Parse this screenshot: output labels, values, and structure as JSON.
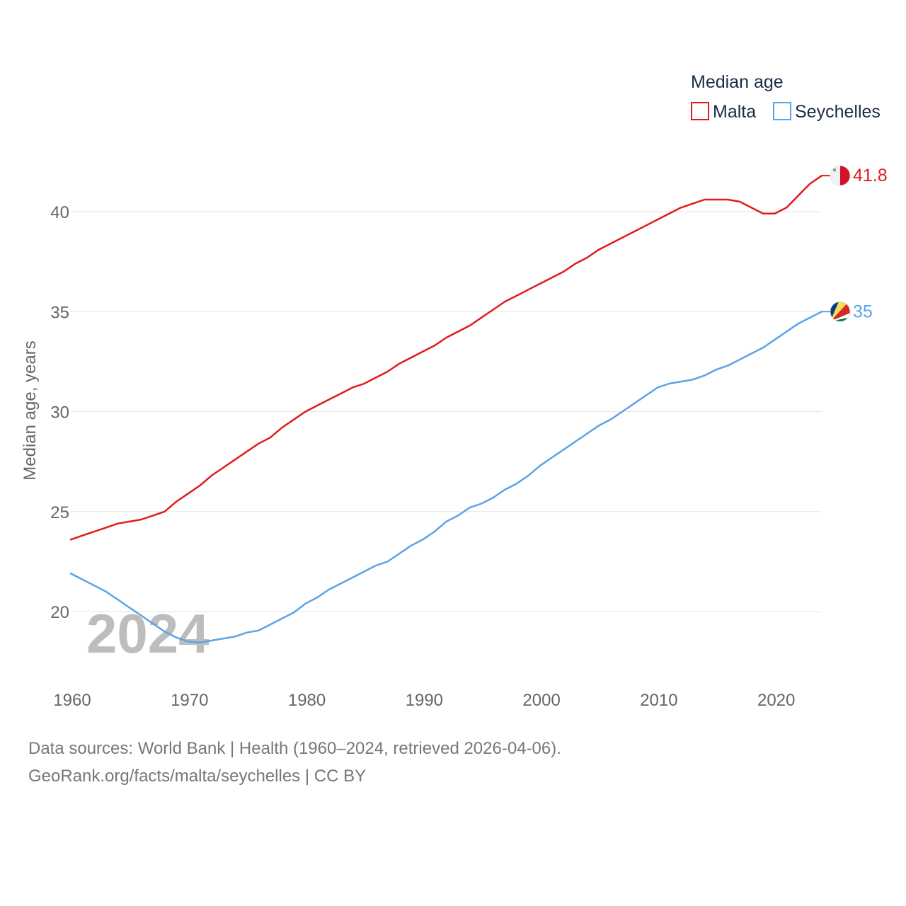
{
  "chart_data": {
    "type": "line",
    "legend_title": "Median age",
    "ylabel": "Median age, years",
    "xlabel": "",
    "ylim": [
      16.5,
      43.5
    ],
    "xlim": [
      1960,
      2024
    ],
    "y_ticks": [
      20,
      25,
      30,
      35,
      40
    ],
    "x_ticks": [
      1960,
      1970,
      1980,
      1990,
      2000,
      2010,
      2020
    ],
    "grid": true,
    "legend_position": "top-right",
    "current_year": "2024",
    "series": [
      {
        "name": "Malta",
        "color": "#e31a1c",
        "end_label": "41.8",
        "flag_icon": "malta-flag-icon",
        "x": [
          1960,
          1961,
          1962,
          1963,
          1964,
          1965,
          1966,
          1967,
          1968,
          1969,
          1970,
          1971,
          1972,
          1973,
          1974,
          1975,
          1976,
          1977,
          1978,
          1979,
          1980,
          1981,
          1982,
          1983,
          1984,
          1985,
          1986,
          1987,
          1988,
          1989,
          1990,
          1991,
          1992,
          1993,
          1994,
          1995,
          1996,
          1997,
          1998,
          1999,
          2000,
          2001,
          2002,
          2003,
          2004,
          2005,
          2006,
          2007,
          2008,
          2009,
          2010,
          2011,
          2012,
          2013,
          2014,
          2015,
          2016,
          2017,
          2018,
          2019,
          2020,
          2021,
          2022,
          2023,
          2024
        ],
        "values": [
          23.6,
          23.8,
          24.0,
          24.2,
          24.4,
          24.5,
          24.6,
          24.8,
          25.0,
          25.5,
          25.9,
          26.3,
          26.8,
          27.2,
          27.6,
          28.0,
          28.4,
          28.7,
          29.2,
          29.6,
          30.0,
          30.3,
          30.6,
          30.9,
          31.2,
          31.4,
          31.7,
          32.0,
          32.4,
          32.7,
          33.0,
          33.3,
          33.7,
          34.0,
          34.3,
          34.7,
          35.1,
          35.5,
          35.8,
          36.1,
          36.4,
          36.7,
          37.0,
          37.4,
          37.7,
          38.1,
          38.4,
          38.7,
          39.0,
          39.3,
          39.6,
          39.9,
          40.2,
          40.4,
          40.6,
          40.6,
          40.6,
          40.5,
          40.2,
          39.9,
          39.9,
          40.2,
          40.8,
          41.4,
          41.8
        ]
      },
      {
        "name": "Seychelles",
        "color": "#5ba3e6",
        "end_label": "35",
        "flag_icon": "seychelles-flag-icon",
        "x": [
          1960,
          1961,
          1962,
          1963,
          1964,
          1965,
          1966,
          1967,
          1968,
          1969,
          1970,
          1971,
          1972,
          1973,
          1974,
          1975,
          1976,
          1977,
          1978,
          1979,
          1980,
          1981,
          1982,
          1983,
          1984,
          1985,
          1986,
          1987,
          1988,
          1989,
          1990,
          1991,
          1992,
          1993,
          1994,
          1995,
          1996,
          1997,
          1998,
          1999,
          2000,
          2001,
          2002,
          2003,
          2004,
          2005,
          2006,
          2007,
          2008,
          2009,
          2010,
          2011,
          2012,
          2013,
          2014,
          2015,
          2016,
          2017,
          2018,
          2019,
          2020,
          2021,
          2022,
          2023,
          2024
        ],
        "values": [
          21.9,
          21.6,
          21.3,
          21.0,
          20.6,
          20.2,
          19.8,
          19.4,
          19.0,
          18.7,
          18.5,
          18.45,
          18.55,
          18.65,
          18.75,
          18.95,
          19.05,
          19.35,
          19.65,
          19.95,
          20.4,
          20.7,
          21.1,
          21.4,
          21.7,
          22.0,
          22.3,
          22.5,
          22.9,
          23.3,
          23.6,
          24.0,
          24.5,
          24.8,
          25.2,
          25.4,
          25.7,
          26.1,
          26.4,
          26.8,
          27.3,
          27.7,
          28.1,
          28.5,
          28.9,
          29.3,
          29.6,
          30.0,
          30.4,
          30.8,
          31.2,
          31.4,
          31.5,
          31.6,
          31.8,
          32.1,
          32.3,
          32.6,
          32.9,
          33.2,
          33.6,
          34.0,
          34.4,
          34.7,
          35.0
        ]
      }
    ]
  },
  "footer": {
    "sources": "Data sources: World Bank | Health (1960–2024, retrieved 2026-04-06).",
    "credit": "GeoRank.org/facts/malta/seychelles | CC BY"
  }
}
